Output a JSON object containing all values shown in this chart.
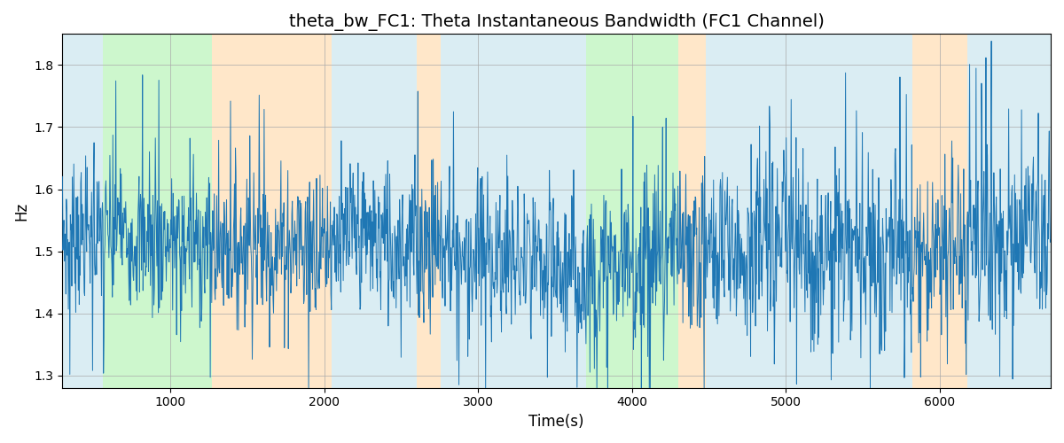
{
  "title": "theta_bw_FC1: Theta Instantaneous Bandwidth (FC1 Channel)",
  "xlabel": "Time(s)",
  "ylabel": "Hz",
  "xlim": [
    300,
    6720
  ],
  "ylim": [
    1.28,
    1.85
  ],
  "yticks": [
    1.3,
    1.4,
    1.5,
    1.6,
    1.7,
    1.8
  ],
  "xticks": [
    1000,
    2000,
    3000,
    4000,
    5000,
    6000
  ],
  "line_color": "#1f77b4",
  "line_width": 0.7,
  "background_color": "#ffffff",
  "grid_color": "#aaaaaa",
  "bg_bands": [
    {
      "xstart": 300,
      "xend": 560,
      "color": "#add8e6",
      "alpha": 0.45
    },
    {
      "xstart": 560,
      "xend": 1270,
      "color": "#90ee90",
      "alpha": 0.45
    },
    {
      "xstart": 1270,
      "xend": 2050,
      "color": "#ffd59e",
      "alpha": 0.55
    },
    {
      "xstart": 2050,
      "xend": 2600,
      "color": "#add8e6",
      "alpha": 0.45
    },
    {
      "xstart": 2600,
      "xend": 2760,
      "color": "#ffd59e",
      "alpha": 0.55
    },
    {
      "xstart": 2760,
      "xend": 3700,
      "color": "#add8e6",
      "alpha": 0.45
    },
    {
      "xstart": 3700,
      "xend": 4300,
      "color": "#90ee90",
      "alpha": 0.45
    },
    {
      "xstart": 4300,
      "xend": 4480,
      "color": "#ffd59e",
      "alpha": 0.55
    },
    {
      "xstart": 4480,
      "xend": 5820,
      "color": "#add8e6",
      "alpha": 0.45
    },
    {
      "xstart": 5820,
      "xend": 6180,
      "color": "#ffd59e",
      "alpha": 0.55
    },
    {
      "xstart": 6180,
      "xend": 6720,
      "color": "#add8e6",
      "alpha": 0.45
    }
  ],
  "seed": 7,
  "n_points": 2000,
  "t_start": 300,
  "t_end": 6720,
  "figsize": [
    12,
    5
  ],
  "dpi": 100
}
